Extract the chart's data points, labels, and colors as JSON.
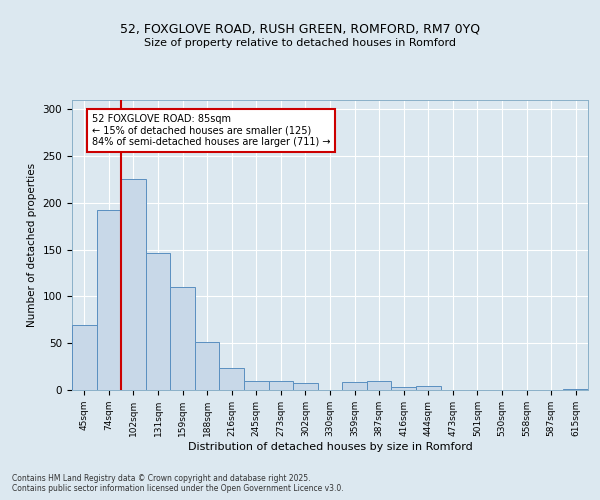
{
  "title1": "52, FOXGLOVE ROAD, RUSH GREEN, ROMFORD, RM7 0YQ",
  "title2": "Size of property relative to detached houses in Romford",
  "xlabel": "Distribution of detached houses by size in Romford",
  "ylabel": "Number of detached properties",
  "categories": [
    "45sqm",
    "74sqm",
    "102sqm",
    "131sqm",
    "159sqm",
    "188sqm",
    "216sqm",
    "245sqm",
    "273sqm",
    "302sqm",
    "330sqm",
    "359sqm",
    "387sqm",
    "416sqm",
    "444sqm",
    "473sqm",
    "501sqm",
    "530sqm",
    "558sqm",
    "587sqm",
    "615sqm"
  ],
  "values": [
    70,
    192,
    226,
    146,
    110,
    51,
    24,
    10,
    10,
    8,
    0,
    9,
    10,
    3,
    4,
    0,
    0,
    0,
    0,
    0,
    1
  ],
  "bar_color": "#c8d8e8",
  "bar_edge_color": "#5a8fc0",
  "annotation_text": "52 FOXGLOVE ROAD: 85sqm\n← 15% of detached houses are smaller (125)\n84% of semi-detached houses are larger (711) →",
  "annotation_box_color": "#ffffff",
  "annotation_box_edge": "#cc0000",
  "line_color": "#cc0000",
  "footer1": "Contains HM Land Registry data © Crown copyright and database right 2025.",
  "footer2": "Contains public sector information licensed under the Open Government Licence v3.0.",
  "bg_color": "#dce8f0",
  "plot_bg_color": "#dce8f0",
  "ylim": [
    0,
    310
  ],
  "yticks": [
    0,
    50,
    100,
    150,
    200,
    250,
    300
  ]
}
